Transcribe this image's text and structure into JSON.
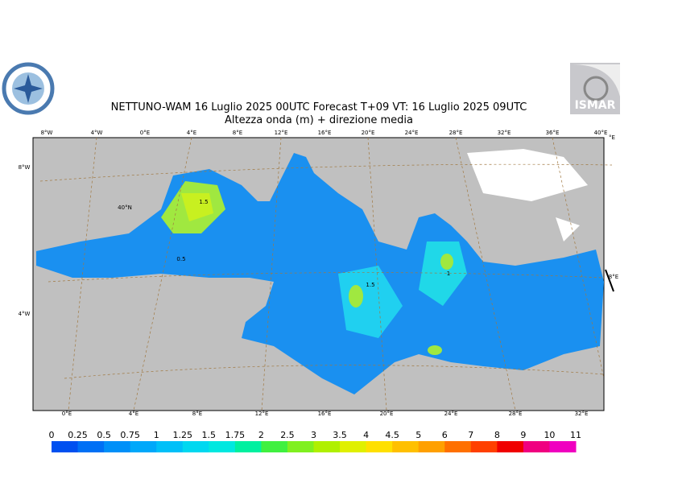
{
  "header": {
    "title": "NETTUNO-WAM  16  Luglio   2025 00UTC Forecast T+09 VT: 16  Luglio   2025 09UTC",
    "subtitle": "Altezza onda (m) + direzione media",
    "logo_text": "ISMAR"
  },
  "map": {
    "top_labels": [
      "8°W",
      "4°W",
      "0°E",
      "4°E",
      "8°E",
      "12°E",
      "16°E",
      "20°E",
      "24°E",
      "28°E",
      "32°E",
      "36°E",
      "40°E"
    ],
    "left_labels": [
      "8°W",
      "40°N",
      "4°W"
    ],
    "right_labels": [
      "°E",
      "8°E"
    ],
    "bottom_labels": [
      "0°E",
      "4°E",
      "8°E",
      "12°E",
      "16°E",
      "20°E",
      "24°E",
      "28°E",
      "32°E"
    ],
    "contour_labels": [
      "0.5",
      "1.5",
      "1.5",
      "1"
    ]
  },
  "legend": {
    "ticks": [
      "0",
      "0.25",
      "0.5",
      "0.75",
      "1",
      "1.25",
      "1.5",
      "1.75",
      "2",
      "2.5",
      "3",
      "3.5",
      "4",
      "4.5",
      "5",
      "6",
      "7",
      "8",
      "9",
      "10",
      "11"
    ],
    "colors": [
      "#0050f0",
      "#0070f5",
      "#0090f8",
      "#00a8fa",
      "#00c0f8",
      "#00d8f0",
      "#00e8e0",
      "#00f0a0",
      "#40f040",
      "#80f020",
      "#b0f000",
      "#e0f000",
      "#ffe000",
      "#ffc000",
      "#ffa000",
      "#ff7000",
      "#ff4000",
      "#f00000",
      "#f00080",
      "#f000c0"
    ]
  }
}
